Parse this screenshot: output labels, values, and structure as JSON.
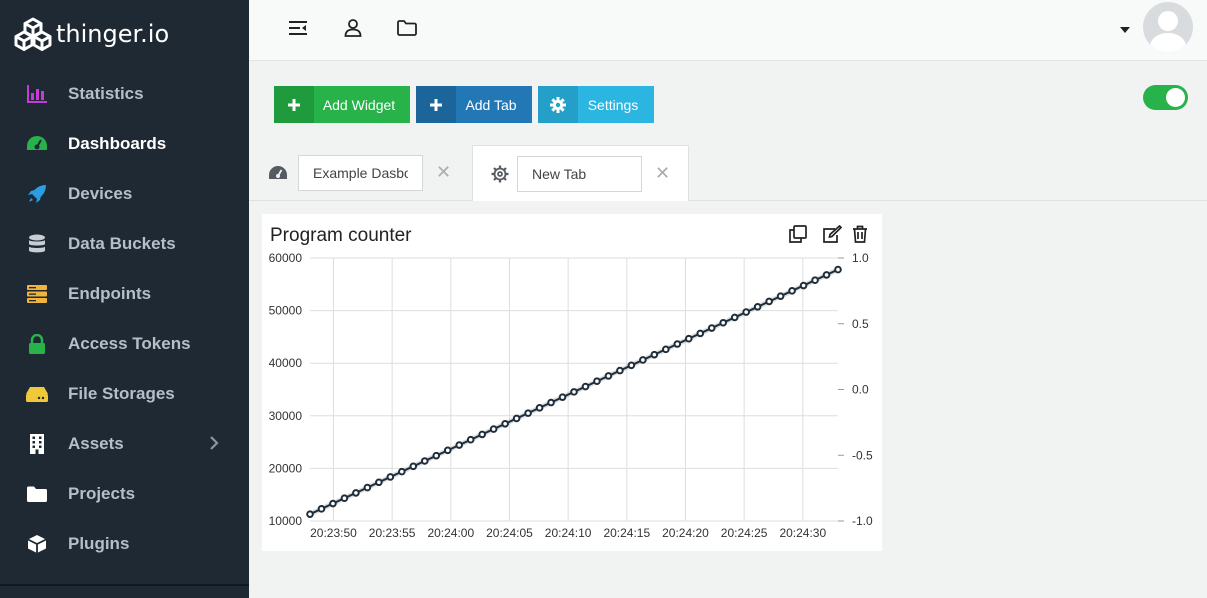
{
  "brand": {
    "name": "thinger.io",
    "logo_icon": "cubes-logo-icon"
  },
  "sidebar": {
    "items": [
      {
        "label": "Statistics",
        "icon": "chart-icon",
        "color": "#c63ad9"
      },
      {
        "label": "Dashboards",
        "icon": "gauge-icon",
        "color": "#27b24a",
        "active": true
      },
      {
        "label": "Devices",
        "icon": "rocket-icon",
        "color": "#2b9de0"
      },
      {
        "label": "Data Buckets",
        "icon": "database-icon",
        "color": "#c7cdd3"
      },
      {
        "label": "Endpoints",
        "icon": "server-icon",
        "color": "#f0b43a"
      },
      {
        "label": "Access Tokens",
        "icon": "lock-icon",
        "color": "#27b24a"
      },
      {
        "label": "File Storages",
        "icon": "hdd-icon",
        "color": "#f0c93a"
      },
      {
        "label": "Assets",
        "icon": "building-icon",
        "color": "#ffffff",
        "has_children": true
      },
      {
        "label": "Projects",
        "icon": "folder-icon",
        "color": "#ffffff"
      },
      {
        "label": "Plugins",
        "icon": "cube-icon",
        "color": "#ffffff"
      }
    ]
  },
  "topbar": {
    "icons": [
      "sidebar-toggle-icon",
      "user-icon",
      "folder-icon"
    ],
    "avatar_icon": "avatar-icon"
  },
  "toolbar": {
    "add_widget": "Add Widget",
    "add_tab": "Add Tab",
    "settings": "Settings",
    "toggle_on": true
  },
  "tabs": [
    {
      "value": "Example Dasbo",
      "icon": "gauge-icon"
    },
    {
      "value": "New Tab",
      "icon": "gear-icon",
      "active": true
    }
  ],
  "widget": {
    "title": "Program counter",
    "actions": [
      "duplicate-icon",
      "edit-icon",
      "trash-icon"
    ]
  },
  "chart_data": {
    "type": "line",
    "title": "Program counter",
    "x_start": "20:23:48",
    "x_end": "20:24:33",
    "x_ticks": [
      "20:23:50",
      "20:23:55",
      "20:24:00",
      "20:24:05",
      "20:24:10",
      "20:24:15",
      "20:24:20",
      "20:24:25",
      "20:24:30"
    ],
    "y_left_ticks": [
      "60000",
      "50000",
      "40000",
      "30000",
      "20000",
      "10000"
    ],
    "y_left_range": [
      10000,
      60000
    ],
    "y_right_ticks": [
      "1.0",
      "0.5",
      "0.0",
      "-0.5",
      "-1.0"
    ],
    "y_right_range": [
      -1,
      1
    ],
    "series": [
      {
        "color": "#1f2d3a",
        "start_value": 11300,
        "end_value": 57800,
        "point_count": 47
      }
    ],
    "grid": true
  }
}
